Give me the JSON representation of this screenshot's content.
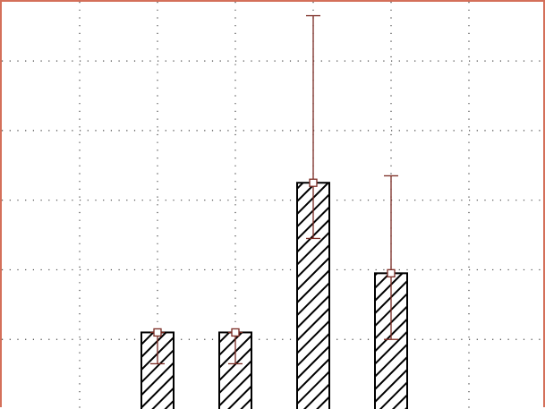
{
  "chart_data": {
    "type": "bar",
    "title": "",
    "xlabel": "",
    "ylabel": "",
    "x_positions": [
      2,
      3,
      4,
      5
    ],
    "values": [
      1.1,
      1.1,
      3.25,
      1.95
    ],
    "error_low": [
      0.45,
      0.45,
      0.8,
      0.95
    ],
    "error_high": [
      0.0,
      0.0,
      2.4,
      1.4
    ],
    "xlim": [
      0,
      7
    ],
    "ylim": [
      0,
      5.85
    ],
    "grid": true,
    "grid_x": [
      1,
      2,
      3,
      4,
      5,
      6
    ],
    "grid_y": [
      1,
      2,
      3,
      4,
      5
    ],
    "bar_fill": "hatched",
    "colors": {
      "frame": "#d4705a",
      "error_bar": "#7a2a22",
      "marker": "#7a2a22",
      "bar_edge": "#000000",
      "grid": "#444444"
    }
  }
}
